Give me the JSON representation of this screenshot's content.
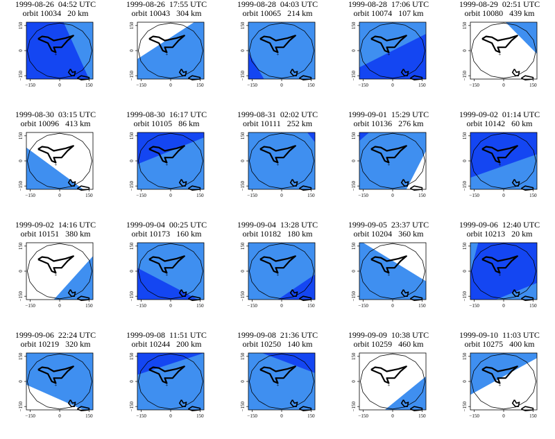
{
  "chart_data": {
    "type": "map-panels",
    "layout": "4 rows x 5 columns",
    "axis": {
      "xticks": [
        -150,
        0,
        150
      ],
      "yticks": [
        -150,
        0,
        150
      ],
      "xlim": [
        -170,
        170
      ],
      "ylim": [
        -170,
        170
      ]
    },
    "station_marker": "+",
    "coverage_colors": {
      "light": "#3f8ff0",
      "dark": "#1446f2",
      "none": "#ffffff"
    },
    "panels": [
      {
        "date": "1999-08-26",
        "time": "04:52 UTC",
        "orbit": "orbit 10034",
        "distance": "20 km",
        "coverage": [
          {
            "shade": "light",
            "poly": [
              [
                -170,
                170
              ],
              [
                170,
                170
              ],
              [
                170,
                -170
              ],
              [
                -170,
                -170
              ]
            ]
          },
          {
            "shade": "dark",
            "poly": [
              [
                -170,
                170
              ],
              [
                20,
                170
              ],
              [
                150,
                -170
              ],
              [
                -170,
                -170
              ]
            ]
          }
        ]
      },
      {
        "date": "1999-08-26",
        "time": "17:55 UTC",
        "orbit": "orbit 10043",
        "distance": "304 km",
        "coverage": [
          {
            "shade": "light",
            "poly": [
              [
                -170,
                -50
              ],
              [
                120,
                170
              ],
              [
                170,
                170
              ],
              [
                170,
                -170
              ],
              [
                -170,
                -170
              ]
            ]
          }
        ]
      },
      {
        "date": "1999-08-28",
        "time": "04:03 UTC",
        "orbit": "orbit 10065",
        "distance": "214 km",
        "coverage": [
          {
            "shade": "light",
            "poly": [
              [
                -170,
                170
              ],
              [
                170,
                170
              ],
              [
                170,
                -170
              ],
              [
                -170,
                -170
              ]
            ]
          },
          {
            "shade": "dark",
            "poly": [
              [
                -170,
                -10
              ],
              [
                -90,
                -170
              ],
              [
                -170,
                -170
              ]
            ]
          }
        ]
      },
      {
        "date": "1999-08-28",
        "time": "17:06 UTC",
        "orbit": "orbit 10074",
        "distance": "107 km",
        "coverage": [
          {
            "shade": "light",
            "poly": [
              [
                -170,
                170
              ],
              [
                170,
                170
              ],
              [
                170,
                -170
              ],
              [
                -170,
                -170
              ]
            ]
          },
          {
            "shade": "dark",
            "poly": [
              [
                -170,
                -100
              ],
              [
                170,
                100
              ],
              [
                170,
                -170
              ],
              [
                -170,
                -170
              ]
            ]
          }
        ]
      },
      {
        "date": "1999-08-29",
        "time": "02:51 UTC",
        "orbit": "orbit 10080",
        "distance": "439 km",
        "coverage": [
          {
            "shade": "light",
            "poly": [
              [
                10,
                170
              ],
              [
                170,
                170
              ],
              [
                170,
                -20
              ]
            ]
          }
        ]
      },
      {
        "date": "1999-08-30",
        "time": "03:15 UTC",
        "orbit": "orbit 10096",
        "distance": "413 km",
        "coverage": [
          {
            "shade": "light",
            "poly": [
              [
                -170,
                80
              ],
              [
                120,
                -170
              ],
              [
                -170,
                -170
              ]
            ]
          }
        ]
      },
      {
        "date": "1999-08-30",
        "time": "16:17 UTC",
        "orbit": "orbit 10105",
        "distance": "86 km",
        "coverage": [
          {
            "shade": "light",
            "poly": [
              [
                -170,
                170
              ],
              [
                170,
                170
              ],
              [
                170,
                -170
              ],
              [
                -170,
                -170
              ]
            ]
          },
          {
            "shade": "dark",
            "poly": [
              [
                -170,
                -20
              ],
              [
                170,
                140
              ],
              [
                170,
                170
              ],
              [
                -170,
                170
              ]
            ]
          }
        ]
      },
      {
        "date": "1999-08-31",
        "time": "02:02 UTC",
        "orbit": "orbit 10111",
        "distance": "252 km",
        "coverage": [
          {
            "shade": "light",
            "poly": [
              [
                -170,
                170
              ],
              [
                130,
                170
              ],
              [
                170,
                110
              ],
              [
                170,
                -170
              ],
              [
                -170,
                -170
              ]
            ]
          },
          {
            "shade": "dark",
            "poly": [
              [
                130,
                170
              ],
              [
                170,
                170
              ],
              [
                170,
                110
              ]
            ]
          }
        ]
      },
      {
        "date": "1999-09-01",
        "time": "15:29 UTC",
        "orbit": "orbit 10136",
        "distance": "276 km",
        "coverage": [
          {
            "shade": "light",
            "poly": [
              [
                -170,
                170
              ],
              [
                170,
                170
              ],
              [
                170,
                60
              ],
              [
                70,
                -170
              ],
              [
                -170,
                -170
              ]
            ]
          },
          {
            "shade": "dark",
            "poly": [
              [
                -170,
                170
              ],
              [
                -120,
                170
              ],
              [
                -170,
                120
              ]
            ]
          }
        ]
      },
      {
        "date": "1999-09-02",
        "time": "01:14 UTC",
        "orbit": "orbit 10142",
        "distance": "60 km",
        "coverage": [
          {
            "shade": "light",
            "poly": [
              [
                -170,
                170
              ],
              [
                170,
                170
              ],
              [
                170,
                -170
              ],
              [
                -170,
                -170
              ]
            ]
          },
          {
            "shade": "dark",
            "poly": [
              [
                -170,
                170
              ],
              [
                170,
                170
              ],
              [
                170,
                40
              ],
              [
                -170,
                -100
              ]
            ]
          }
        ]
      },
      {
        "date": "1999-09-02",
        "time": "14:16 UTC",
        "orbit": "orbit 10151",
        "distance": "380 km",
        "coverage": [
          {
            "shade": "light",
            "poly": [
              [
                170,
                90
              ],
              [
                -30,
                -170
              ],
              [
                170,
                -170
              ]
            ]
          }
        ]
      },
      {
        "date": "1999-09-04",
        "time": "00:25 UTC",
        "orbit": "orbit 10173",
        "distance": "160 km",
        "coverage": [
          {
            "shade": "light",
            "poly": [
              [
                -170,
                170
              ],
              [
                170,
                170
              ],
              [
                170,
                -170
              ],
              [
                -170,
                -170
              ]
            ]
          },
          {
            "shade": "dark",
            "poly": [
              [
                -170,
                20
              ],
              [
                140,
                -170
              ],
              [
                -170,
                -170
              ]
            ]
          }
        ]
      },
      {
        "date": "1999-09-04",
        "time": "13:28 UTC",
        "orbit": "orbit 10182",
        "distance": "180 km",
        "coverage": [
          {
            "shade": "light",
            "poly": [
              [
                -170,
                170
              ],
              [
                170,
                170
              ],
              [
                170,
                -170
              ],
              [
                -170,
                -170
              ]
            ]
          },
          {
            "shade": "dark",
            "poly": [
              [
                -20,
                -170
              ],
              [
                170,
                -20
              ],
              [
                170,
                -170
              ]
            ]
          }
        ]
      },
      {
        "date": "1999-09-05",
        "time": "23:37 UTC",
        "orbit": "orbit 10204",
        "distance": "360 km",
        "coverage": [
          {
            "shade": "light",
            "poly": [
              [
                -170,
                170
              ],
              [
                -150,
                170
              ],
              [
                170,
                -60
              ],
              [
                170,
                -170
              ],
              [
                -170,
                -170
              ]
            ]
          }
        ]
      },
      {
        "date": "1999-09-06",
        "time": "12:40 UTC",
        "orbit": "orbit 10213",
        "distance": "20 km",
        "coverage": [
          {
            "shade": "light",
            "poly": [
              [
                -170,
                170
              ],
              [
                170,
                170
              ],
              [
                170,
                -170
              ],
              [
                -170,
                -170
              ]
            ]
          },
          {
            "shade": "dark",
            "poly": [
              [
                -130,
                170
              ],
              [
                170,
                170
              ],
              [
                170,
                -70
              ],
              [
                -40,
                -170
              ],
              [
                -170,
                -170
              ],
              [
                -170,
                -10
              ]
            ]
          }
        ]
      },
      {
        "date": "1999-09-06",
        "time": "22:24 UTC",
        "orbit": "orbit 10219",
        "distance": "320 km",
        "coverage": [
          {
            "shade": "light",
            "poly": [
              [
                -170,
                170
              ],
              [
                170,
                170
              ],
              [
                170,
                -170
              ],
              [
                120,
                -170
              ],
              [
                -170,
                -20
              ]
            ]
          }
        ]
      },
      {
        "date": "1999-09-08",
        "time": "11:51 UTC",
        "orbit": "orbit 10244",
        "distance": "200 km",
        "coverage": [
          {
            "shade": "light",
            "poly": [
              [
                -170,
                170
              ],
              [
                170,
                170
              ],
              [
                170,
                -170
              ],
              [
                -170,
                -170
              ]
            ]
          },
          {
            "shade": "dark",
            "poly": [
              [
                -170,
                170
              ],
              [
                170,
                170
              ],
              [
                170,
                170
              ],
              [
                -170,
                40
              ]
            ]
          }
        ]
      },
      {
        "date": "1999-09-08",
        "time": "21:36 UTC",
        "orbit": "orbit 10250",
        "distance": "140 km",
        "coverage": [
          {
            "shade": "light",
            "poly": [
              [
                -170,
                170
              ],
              [
                170,
                170
              ],
              [
                170,
                -170
              ],
              [
                -170,
                -170
              ]
            ]
          },
          {
            "shade": "dark",
            "poly": [
              [
                -170,
                170
              ],
              [
                170,
                170
              ],
              [
                170,
                50
              ],
              [
                -100,
                170
              ]
            ]
          }
        ]
      },
      {
        "date": "1999-09-09",
        "time": "10:38 UTC",
        "orbit": "orbit 10259",
        "distance": "460 km",
        "coverage": [
          {
            "shade": "light",
            "poly": [
              [
                170,
                30
              ],
              [
                -40,
                -170
              ],
              [
                170,
                -170
              ],
              [
                170,
                -170
              ]
            ]
          }
        ]
      },
      {
        "date": "1999-09-10",
        "time": "11:03 UTC",
        "orbit": "orbit 10275",
        "distance": "400 km",
        "coverage": [
          {
            "shade": "light",
            "poly": [
              [
                -170,
                -80
              ],
              [
                170,
                140
              ],
              [
                170,
                170
              ],
              [
                -170,
                170
              ]
            ]
          }
        ]
      }
    ]
  }
}
